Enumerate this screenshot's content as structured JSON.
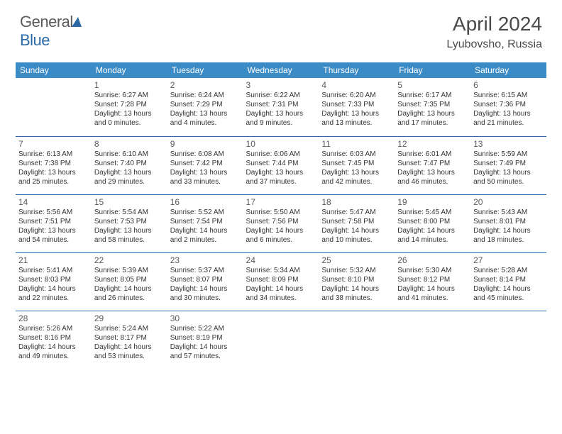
{
  "colors": {
    "header_bg": "#3b8bc6",
    "border": "#2d6aa8",
    "text": "#333333",
    "muted": "#5a5a5a",
    "logo_blue": "#2d6aa8"
  },
  "logo": {
    "part1": "General",
    "part2": "Blue"
  },
  "title": "April 2024",
  "location": "Lyubovsho, Russia",
  "weekdays": [
    "Sunday",
    "Monday",
    "Tuesday",
    "Wednesday",
    "Thursday",
    "Friday",
    "Saturday"
  ],
  "weeks": [
    [
      null,
      {
        "n": "1",
        "sr": "6:27 AM",
        "ss": "7:28 PM",
        "dl": "13 hours and 0 minutes."
      },
      {
        "n": "2",
        "sr": "6:24 AM",
        "ss": "7:29 PM",
        "dl": "13 hours and 4 minutes."
      },
      {
        "n": "3",
        "sr": "6:22 AM",
        "ss": "7:31 PM",
        "dl": "13 hours and 9 minutes."
      },
      {
        "n": "4",
        "sr": "6:20 AM",
        "ss": "7:33 PM",
        "dl": "13 hours and 13 minutes."
      },
      {
        "n": "5",
        "sr": "6:17 AM",
        "ss": "7:35 PM",
        "dl": "13 hours and 17 minutes."
      },
      {
        "n": "6",
        "sr": "6:15 AM",
        "ss": "7:36 PM",
        "dl": "13 hours and 21 minutes."
      }
    ],
    [
      {
        "n": "7",
        "sr": "6:13 AM",
        "ss": "7:38 PM",
        "dl": "13 hours and 25 minutes."
      },
      {
        "n": "8",
        "sr": "6:10 AM",
        "ss": "7:40 PM",
        "dl": "13 hours and 29 minutes."
      },
      {
        "n": "9",
        "sr": "6:08 AM",
        "ss": "7:42 PM",
        "dl": "13 hours and 33 minutes."
      },
      {
        "n": "10",
        "sr": "6:06 AM",
        "ss": "7:44 PM",
        "dl": "13 hours and 37 minutes."
      },
      {
        "n": "11",
        "sr": "6:03 AM",
        "ss": "7:45 PM",
        "dl": "13 hours and 42 minutes."
      },
      {
        "n": "12",
        "sr": "6:01 AM",
        "ss": "7:47 PM",
        "dl": "13 hours and 46 minutes."
      },
      {
        "n": "13",
        "sr": "5:59 AM",
        "ss": "7:49 PM",
        "dl": "13 hours and 50 minutes."
      }
    ],
    [
      {
        "n": "14",
        "sr": "5:56 AM",
        "ss": "7:51 PM",
        "dl": "13 hours and 54 minutes."
      },
      {
        "n": "15",
        "sr": "5:54 AM",
        "ss": "7:53 PM",
        "dl": "13 hours and 58 minutes."
      },
      {
        "n": "16",
        "sr": "5:52 AM",
        "ss": "7:54 PM",
        "dl": "14 hours and 2 minutes."
      },
      {
        "n": "17",
        "sr": "5:50 AM",
        "ss": "7:56 PM",
        "dl": "14 hours and 6 minutes."
      },
      {
        "n": "18",
        "sr": "5:47 AM",
        "ss": "7:58 PM",
        "dl": "14 hours and 10 minutes."
      },
      {
        "n": "19",
        "sr": "5:45 AM",
        "ss": "8:00 PM",
        "dl": "14 hours and 14 minutes."
      },
      {
        "n": "20",
        "sr": "5:43 AM",
        "ss": "8:01 PM",
        "dl": "14 hours and 18 minutes."
      }
    ],
    [
      {
        "n": "21",
        "sr": "5:41 AM",
        "ss": "8:03 PM",
        "dl": "14 hours and 22 minutes."
      },
      {
        "n": "22",
        "sr": "5:39 AM",
        "ss": "8:05 PM",
        "dl": "14 hours and 26 minutes."
      },
      {
        "n": "23",
        "sr": "5:37 AM",
        "ss": "8:07 PM",
        "dl": "14 hours and 30 minutes."
      },
      {
        "n": "24",
        "sr": "5:34 AM",
        "ss": "8:09 PM",
        "dl": "14 hours and 34 minutes."
      },
      {
        "n": "25",
        "sr": "5:32 AM",
        "ss": "8:10 PM",
        "dl": "14 hours and 38 minutes."
      },
      {
        "n": "26",
        "sr": "5:30 AM",
        "ss": "8:12 PM",
        "dl": "14 hours and 41 minutes."
      },
      {
        "n": "27",
        "sr": "5:28 AM",
        "ss": "8:14 PM",
        "dl": "14 hours and 45 minutes."
      }
    ],
    [
      {
        "n": "28",
        "sr": "5:26 AM",
        "ss": "8:16 PM",
        "dl": "14 hours and 49 minutes."
      },
      {
        "n": "29",
        "sr": "5:24 AM",
        "ss": "8:17 PM",
        "dl": "14 hours and 53 minutes."
      },
      {
        "n": "30",
        "sr": "5:22 AM",
        "ss": "8:19 PM",
        "dl": "14 hours and 57 minutes."
      },
      null,
      null,
      null,
      null
    ]
  ],
  "labels": {
    "sunrise": "Sunrise:",
    "sunset": "Sunset:",
    "daylight": "Daylight:"
  }
}
